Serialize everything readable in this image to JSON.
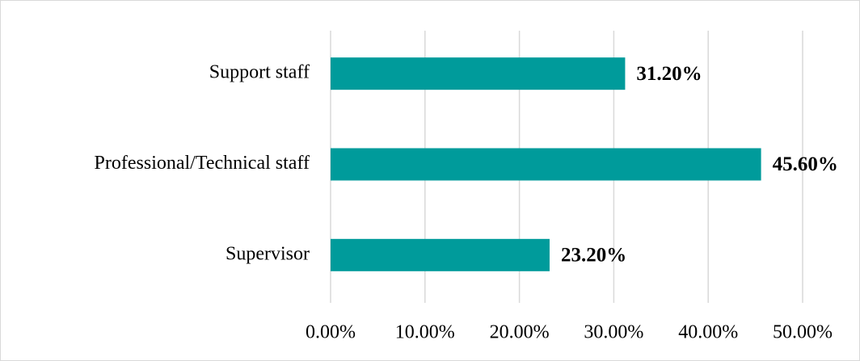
{
  "chart_data": {
    "type": "bar",
    "orientation": "horizontal",
    "categories": [
      "Support staff",
      "Professional/Technical staff",
      "Supervisor"
    ],
    "values": [
      31.2,
      45.6,
      23.2
    ],
    "value_labels": [
      "31.20%",
      "45.60%",
      "23.20%"
    ],
    "color": "#009b9b",
    "xlim": [
      0,
      50
    ],
    "xticks": [
      {
        "value": 0,
        "label": "0.00%"
      },
      {
        "value": 10,
        "label": "10.00%"
      },
      {
        "value": 20,
        "label": "20.00%"
      },
      {
        "value": 30,
        "label": "30.00%"
      },
      {
        "value": 40,
        "label": "40.00%"
      },
      {
        "value": 50,
        "label": "50.00%"
      }
    ],
    "grid": true
  }
}
